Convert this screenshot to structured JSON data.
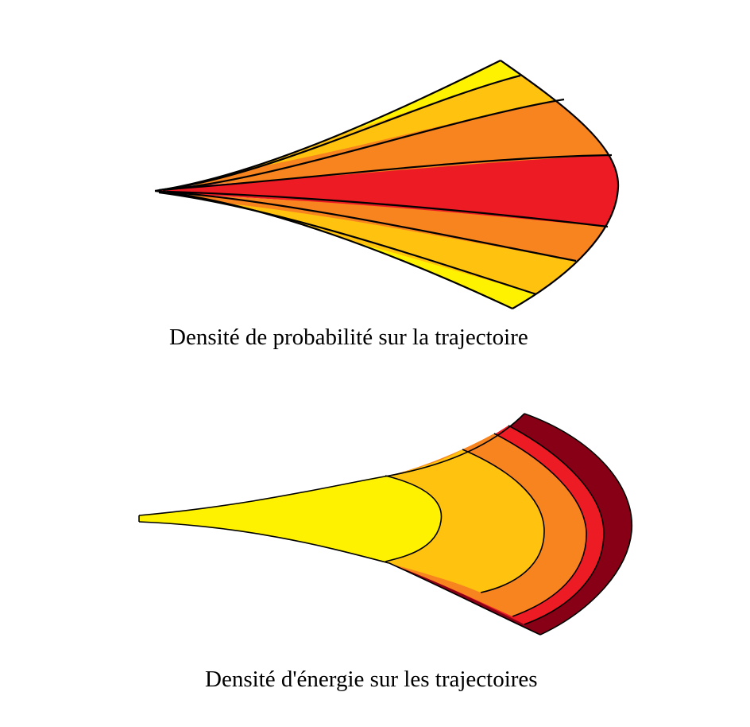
{
  "captions": {
    "top": "Densité de probabilité sur la trajectoire",
    "bottom": "Densité d'énergie sur les trajectoires"
  },
  "colors": {
    "yellow": "#FFF200",
    "gold": "#FFC20E",
    "orange": "#F7841E",
    "red": "#ED1C24",
    "darkred": "#880015",
    "outline": "#000000"
  },
  "top_figure": {
    "bands_top_to_bottom": [
      "yellow",
      "gold",
      "orange",
      "red",
      "orange",
      "gold",
      "yellow"
    ]
  },
  "bottom_figure": {
    "zones_left_to_right": [
      "yellow",
      "gold",
      "orange",
      "red",
      "darkred"
    ]
  }
}
